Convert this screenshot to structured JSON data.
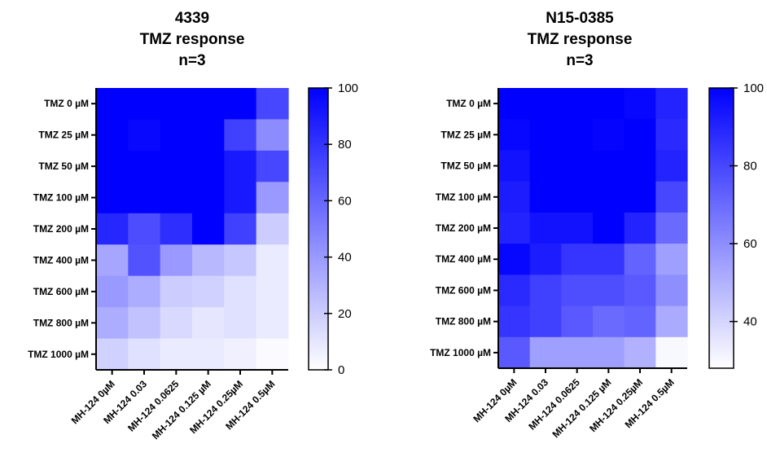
{
  "chart_data": [
    {
      "type": "heatmap",
      "title_lines": [
        "4339",
        "TMZ response",
        "n=3"
      ],
      "rows": [
        "TMZ 0 µM",
        "TMZ 25 µM",
        "TMZ 50 µM",
        "TMZ 100 µM",
        "TMZ 200 µM",
        "TMZ 400 µM",
        "TMZ 600 µM",
        "TMZ 800 µM",
        "TMZ 1000 µM"
      ],
      "columns": [
        "MH-124 0µM",
        "MH-124 0.03",
        "MH-124 0.0625",
        "MH-124 0.125 µM",
        "MH-124 0.25µM",
        "MH-124 0.5µM"
      ],
      "values": [
        [
          100,
          100,
          100,
          100,
          100,
          72
        ],
        [
          100,
          97,
          100,
          100,
          75,
          45
        ],
        [
          100,
          100,
          100,
          100,
          90,
          72
        ],
        [
          100,
          100,
          100,
          100,
          90,
          40
        ],
        [
          85,
          70,
          82,
          100,
          75,
          20
        ],
        [
          35,
          68,
          40,
          28,
          22,
          8
        ],
        [
          40,
          32,
          20,
          18,
          12,
          8
        ],
        [
          32,
          24,
          15,
          10,
          12,
          8
        ],
        [
          18,
          12,
          8,
          8,
          6,
          2
        ]
      ],
      "colorbar": {
        "min": 0,
        "max": 100,
        "ticks": [
          0,
          20,
          40,
          60,
          80,
          100
        ],
        "low_color": "#ffffff",
        "high_color": "#0000ff"
      }
    },
    {
      "type": "heatmap",
      "title_lines": [
        "N15-0385",
        "TMZ response",
        "n=3"
      ],
      "rows": [
        "TMZ 0 µM",
        "TMZ 25 µM",
        "TMZ 50 µM",
        "TMZ 100 µM",
        "TMZ 200 µM",
        "TMZ 400 µM",
        "TMZ 600 µM",
        "TMZ 800 µM",
        "TMZ 1000 µM"
      ],
      "columns": [
        "MH-124 0µM",
        "MH-124 0.03",
        "MH-124 0.0625",
        "MH-124 0.125 µM",
        "MH-124 0.25µM",
        "MH-124 0.5µM"
      ],
      "values": [
        [
          100,
          100,
          100,
          100,
          98,
          90
        ],
        [
          98,
          100,
          100,
          99,
          100,
          88
        ],
        [
          95,
          100,
          100,
          100,
          100,
          90
        ],
        [
          92,
          100,
          100,
          100,
          100,
          80
        ],
        [
          90,
          95,
          95,
          100,
          90,
          70
        ],
        [
          98,
          92,
          85,
          85,
          72,
          55
        ],
        [
          88,
          82,
          78,
          78,
          75,
          60
        ],
        [
          85,
          82,
          75,
          70,
          72,
          52
        ],
        [
          75,
          55,
          55,
          55,
          50,
          30
        ]
      ],
      "colorbar": {
        "min": 28,
        "max": 100,
        "ticks": [
          40,
          60,
          80,
          100
        ],
        "low_color": "#ffffff",
        "high_color": "#0000ff"
      }
    }
  ]
}
